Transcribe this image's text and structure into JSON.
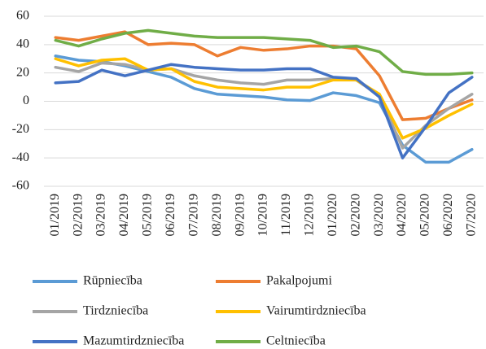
{
  "chart_data": {
    "type": "line",
    "categories": [
      "01/2019",
      "02/2019",
      "03/2019",
      "04/2019",
      "05/2019",
      "06/2019",
      "07/2019",
      "08/2019",
      "09/2019",
      "10/2019",
      "11/2019",
      "12/2019",
      "01/2020",
      "02/2020",
      "03/2020",
      "04/2020",
      "05/2020",
      "06/2020",
      "07/2020"
    ],
    "series": [
      {
        "name": "Rūpniecība",
        "color": "#5b9bd5",
        "values": [
          32,
          29,
          28,
          25,
          21,
          17,
          9,
          5,
          4,
          3,
          1,
          0.5,
          6,
          4,
          -1,
          -31,
          -43,
          -43,
          -34
        ]
      },
      {
        "name": "Pakalpojumi",
        "color": "#ed7d31",
        "values": [
          45,
          43,
          46,
          49,
          40,
          41,
          40,
          32,
          38,
          36,
          37,
          39,
          39,
          37,
          18,
          -13,
          -12,
          -5,
          1
        ]
      },
      {
        "name": "Tirdzniecība",
        "color": "#a5a5a5",
        "values": [
          24,
          21,
          27,
          26,
          22,
          23,
          18,
          15,
          13,
          12,
          15,
          15,
          16,
          15,
          4,
          -33,
          -17,
          -5,
          5
        ]
      },
      {
        "name": "Vairumtirdzniecība",
        "color": "#ffc000",
        "values": [
          30,
          25,
          29,
          30,
          22,
          23,
          14,
          10,
          9,
          8,
          10,
          10,
          15,
          15,
          5,
          -26,
          -19,
          -10,
          -2
        ]
      },
      {
        "name": "Mazumtirdzniecība",
        "color": "#4472c4",
        "values": [
          13,
          14,
          22,
          18,
          22,
          26,
          24,
          23,
          22,
          22,
          23,
          23,
          17,
          16,
          3,
          -40,
          -18,
          6,
          17
        ]
      },
      {
        "name": "Celtniecība",
        "color": "#70ad47",
        "values": [
          43,
          39,
          44,
          48,
          50,
          48,
          46,
          45,
          45,
          45,
          44,
          43,
          38,
          39,
          35,
          21,
          19,
          19,
          20
        ]
      }
    ],
    "ylim": [
      -60,
      60
    ],
    "yticks": [
      -60,
      -40,
      -20,
      0,
      20,
      40,
      60
    ],
    "grid": true
  }
}
